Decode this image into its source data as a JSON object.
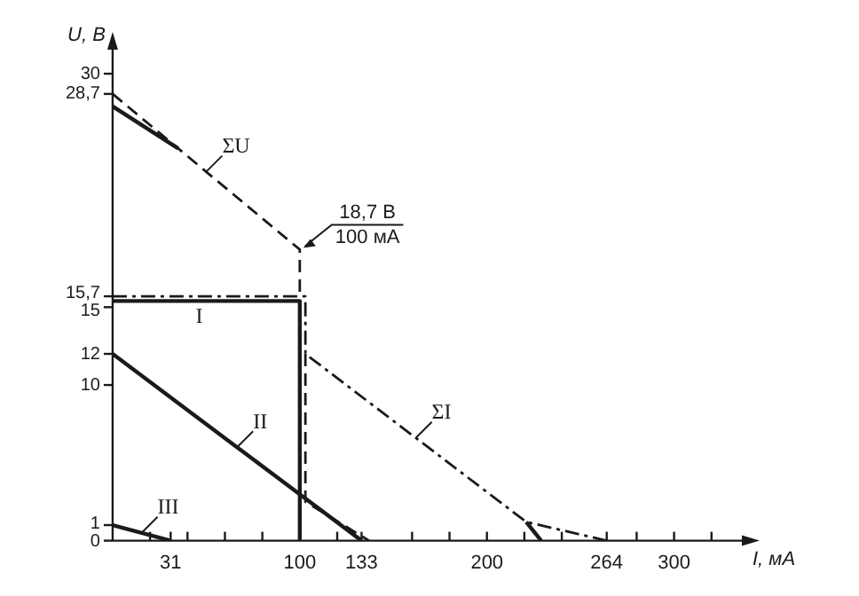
{
  "chart_data": {
    "type": "line",
    "xlabel": "I, мА",
    "ylabel": "U, В",
    "xlim": [
      0,
      340
    ],
    "ylim": [
      0,
      32
    ],
    "xticks": [
      {
        "value": 20,
        "label": null
      },
      {
        "value": 31,
        "label": "31"
      },
      {
        "value": 40,
        "label": null
      },
      {
        "value": 60,
        "label": null
      },
      {
        "value": 80,
        "label": null
      },
      100,
      {
        "value": 120,
        "label": null
      },
      133,
      {
        "value": 160,
        "label": null
      },
      {
        "value": 180,
        "label": null
      },
      200,
      {
        "value": 220,
        "label": null
      },
      {
        "value": 240,
        "label": null
      },
      264,
      {
        "value": 280,
        "label": null
      },
      300,
      {
        "value": 320,
        "label": null
      }
    ],
    "yticks": [
      0,
      1,
      10,
      12,
      15,
      {
        "value": 15.7,
        "label": "15,7"
      },
      {
        "value": 28.7,
        "label": "28,7"
      },
      30
    ],
    "grid": false,
    "legend": false,
    "marker": "none",
    "series": [
      {
        "name": "I",
        "color": "#1a1a1a",
        "line_style": "solid",
        "x": [
          0,
          100,
          100
        ],
        "values": [
          15.4,
          15.4,
          0
        ]
      },
      {
        "name": "II",
        "color": "#1a1a1a",
        "line_style": "solid",
        "x": [
          0,
          133
        ],
        "values": [
          12,
          0
        ]
      },
      {
        "name": "III",
        "color": "#1a1a1a",
        "line_style": "solid",
        "x": [
          0,
          31
        ],
        "values": [
          1,
          0
        ]
      },
      {
        "name": "ΣU",
        "color": "#1a1a1a",
        "line_style": "dashed",
        "x": [
          0,
          100,
          100
        ],
        "values": [
          28.7,
          18.7,
          15.7
        ]
      },
      {
        "name": "ΣI",
        "color": "#1a1a1a",
        "line_style": "dotted",
        "x": [
          0,
          103,
          103,
          221,
          264
        ],
        "values": [
          15.7,
          15.7,
          12,
          1.2,
          0
        ]
      },
      {
        "color": "#1a1a1a",
        "line_style": "dashed",
        "x": [
          103,
          103,
          137
        ],
        "values": [
          12,
          2.5,
          0
        ]
      },
      {
        "color": "#1a1a1a",
        "line_style": "solid",
        "x": [
          221,
          229
        ],
        "values": [
          1.2,
          0
        ]
      },
      {
        "color": "#1a1a1a",
        "line_style": "solid",
        "x": [
          0,
          35
        ],
        "values": [
          27.9,
          25.2
        ]
      }
    ],
    "annotations": [
      {
        "text": "18,7 В\n100 мА",
        "x": 100,
        "y": 18.7
      }
    ]
  }
}
